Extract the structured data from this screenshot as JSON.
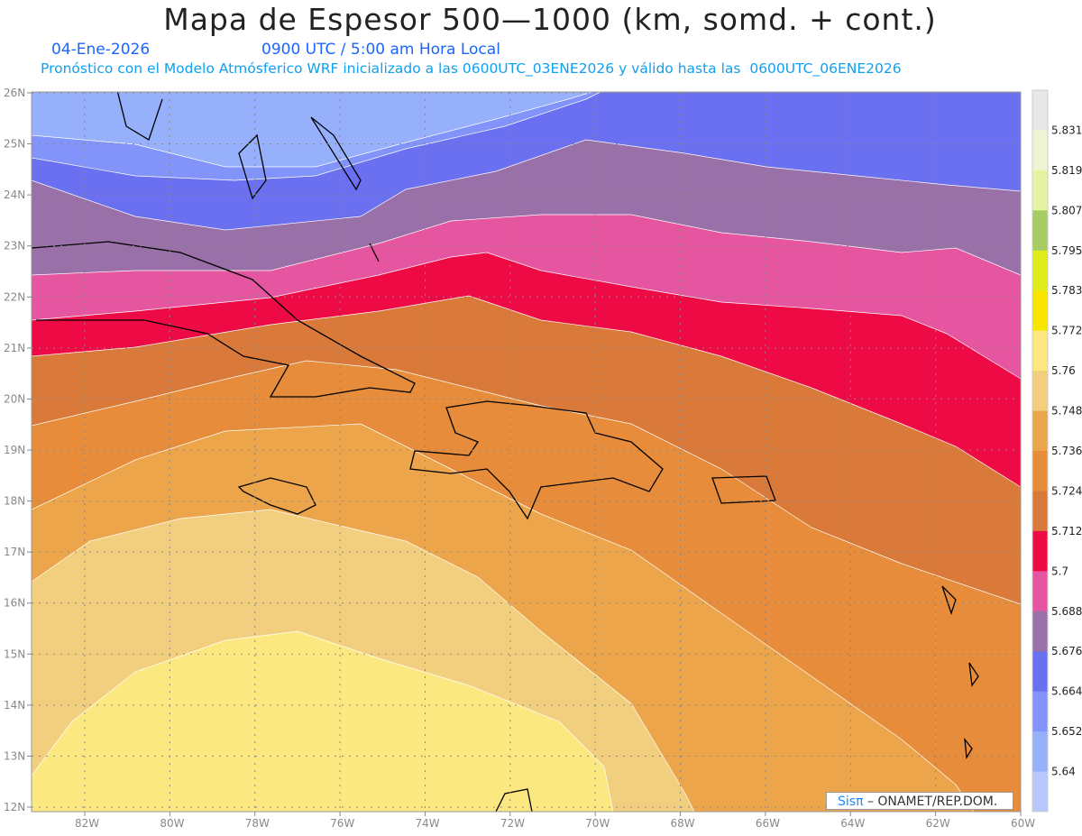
{
  "title": "Mapa de Espesor 500—1000 (km, somd. + cont.)",
  "date": "04-Ene-2026",
  "time": "0900 UTC / 5:00 am Hora Local",
  "subtitle": "Pronóstico con el Modelo Atmósferico WRF inicializado a las 0600UTC_03ENE2026 y válido hasta las  0600UTC_06ENE2026",
  "credit": {
    "brand": "Sisπ",
    "text": " – ONAMET/REP.DOM."
  },
  "lat_labels": [
    "26N",
    "25N",
    "24N",
    "23N",
    "22N",
    "21N",
    "20N",
    "19N",
    "18N",
    "17N",
    "16N",
    "15N",
    "14N",
    "13N",
    "12N"
  ],
  "lon_labels": [
    "82W",
    "80W",
    "78W",
    "76W",
    "74W",
    "72W",
    "70W",
    "68W",
    "66W",
    "64W",
    "62W",
    "60W"
  ],
  "colorbar": {
    "labels": [
      "5.831",
      "5.819",
      "5.807",
      "5.795",
      "5.783",
      "5.772",
      "5.76",
      "5.748",
      "5.736",
      "5.724",
      "5.712",
      "5.7",
      "5.688",
      "5.676",
      "5.664",
      "5.652",
      "5.64"
    ],
    "colors": [
      "#e8e8e8",
      "#eef4d4",
      "#e4f4a2",
      "#a8cc64",
      "#e0ec1a",
      "#f8e600",
      "#fce880",
      "#f2cf7e",
      "#eca54a",
      "#e68c3a",
      "#da7a3a",
      "#ee0a44",
      "#e655a0",
      "#9a70a8",
      "#6a70f0",
      "#8294fa",
      "#96b0fc",
      "#b8c8fc"
    ]
  }
}
